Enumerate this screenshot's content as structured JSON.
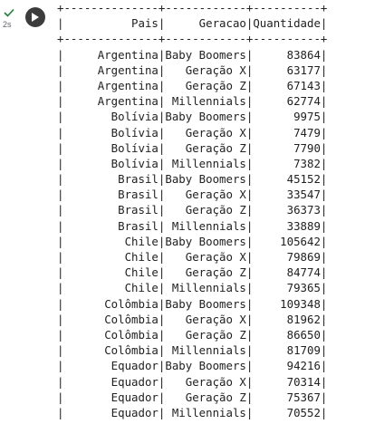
{
  "cell": {
    "status_icon": "check-icon",
    "status_color": "#188038",
    "execution_time": "2s",
    "run_button_icon": "play-icon"
  },
  "table": {
    "border": "+--------------+------------+----------+",
    "header": [
      "Pais",
      "Geracao",
      "Quantidade"
    ],
    "rows": [
      [
        "Argentina",
        "Baby Boomers",
        "83864"
      ],
      [
        "Argentina",
        "Geração X",
        "63177"
      ],
      [
        "Argentina",
        "Geração Z",
        "67143"
      ],
      [
        "Argentina",
        "Millennials",
        "62774"
      ],
      [
        "Bolívia",
        "Baby Boomers",
        "9975"
      ],
      [
        "Bolívia",
        "Geração X",
        "7479"
      ],
      [
        "Bolívia",
        "Geração Z",
        "7790"
      ],
      [
        "Bolívia",
        "Millennials",
        "7382"
      ],
      [
        "Brasil",
        "Baby Boomers",
        "45152"
      ],
      [
        "Brasil",
        "Geração X",
        "33547"
      ],
      [
        "Brasil",
        "Geração Z",
        "36373"
      ],
      [
        "Brasil",
        "Millennials",
        "33889"
      ],
      [
        "Chile",
        "Baby Boomers",
        "105642"
      ],
      [
        "Chile",
        "Geração X",
        "79869"
      ],
      [
        "Chile",
        "Geração Z",
        "84774"
      ],
      [
        "Chile",
        "Millennials",
        "79365"
      ],
      [
        "Colômbia",
        "Baby Boomers",
        "109348"
      ],
      [
        "Colômbia",
        "Geração X",
        "81962"
      ],
      [
        "Colômbia",
        "Geração Z",
        "86650"
      ],
      [
        "Colômbia",
        "Millennials",
        "81709"
      ],
      [
        "Equador",
        "Baby Boomers",
        "94216"
      ],
      [
        "Equador",
        "Geração X",
        "70314"
      ],
      [
        "Equador",
        "Geração Z",
        "75367"
      ],
      [
        "Equador",
        "Millennials",
        "70552"
      ]
    ]
  }
}
